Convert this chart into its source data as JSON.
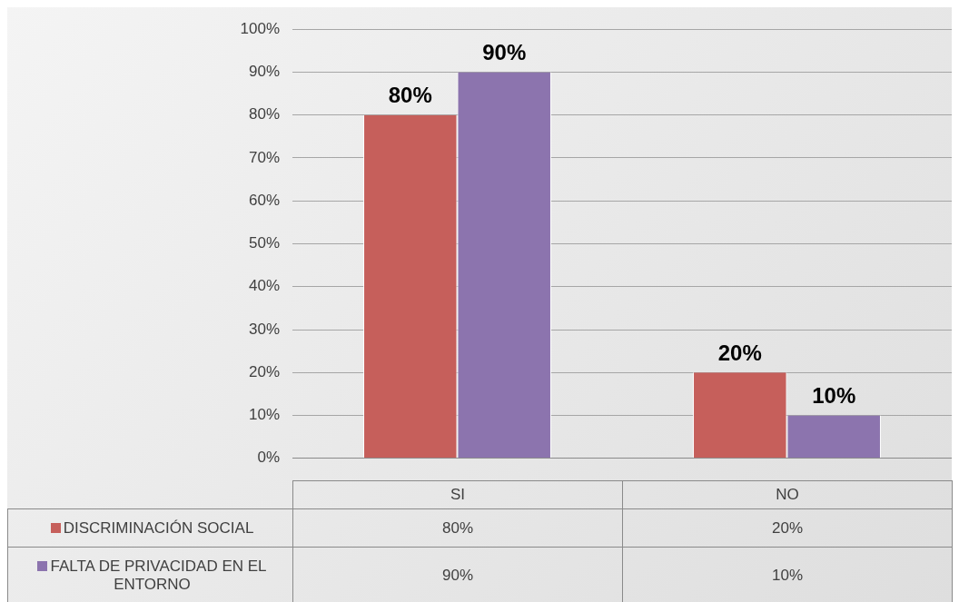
{
  "chart_data": {
    "type": "bar",
    "categories": [
      "SI",
      "NO"
    ],
    "series": [
      {
        "name": "DISCRIMINACIÓN SOCIAL",
        "color": "#c65f5b",
        "values": [
          80,
          20
        ],
        "value_labels": [
          "80%",
          "20%"
        ]
      },
      {
        "name": "FALTA DE PRIVACIDAD EN EL ENTORNO",
        "color": "#8c74ae",
        "values": [
          90,
          10
        ],
        "value_labels": [
          "90%",
          "10%"
        ]
      }
    ],
    "ylim": [
      0,
      100
    ],
    "yticks": [
      {
        "value": 0,
        "label": "0%"
      },
      {
        "value": 10,
        "label": "10%"
      },
      {
        "value": 20,
        "label": "20%"
      },
      {
        "value": 30,
        "label": "30%"
      },
      {
        "value": 40,
        "label": "40%"
      },
      {
        "value": 50,
        "label": "50%"
      },
      {
        "value": 60,
        "label": "60%"
      },
      {
        "value": 70,
        "label": "70%"
      },
      {
        "value": 80,
        "label": "80%"
      },
      {
        "value": 90,
        "label": "90%"
      },
      {
        "value": 100,
        "label": "100%"
      }
    ],
    "grid": "y",
    "legend": "bottom left"
  }
}
